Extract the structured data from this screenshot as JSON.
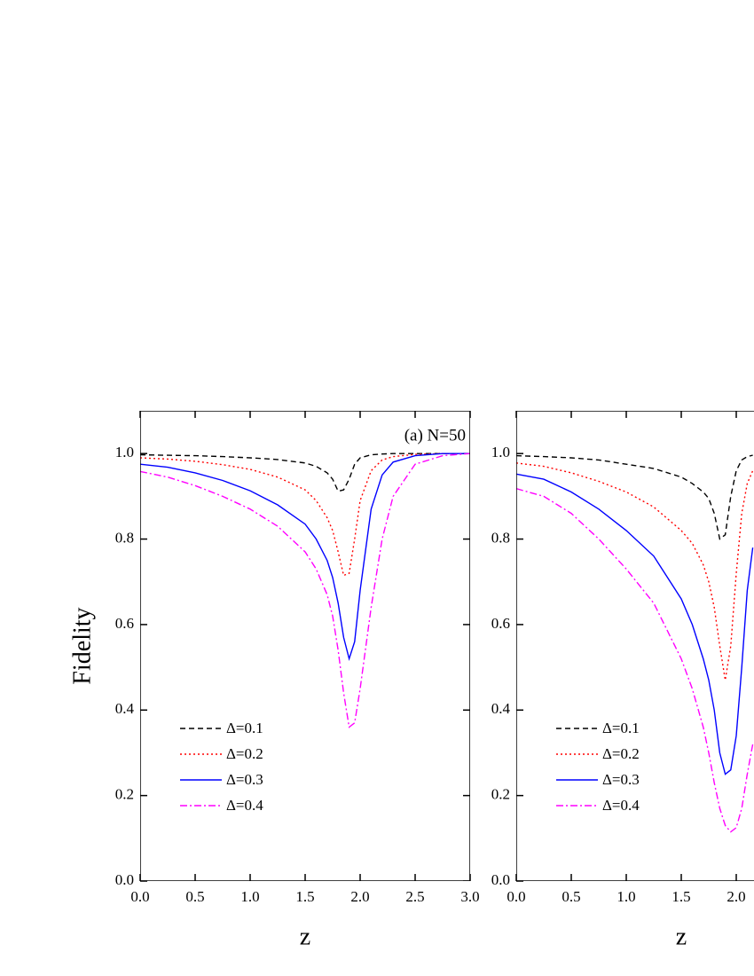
{
  "chart_data": [
    {
      "type": "line",
      "annotation": "(a) N=50",
      "ylabel": "Fidelity",
      "xlabel": "z",
      "xlim": [
        0,
        3
      ],
      "ylim": [
        0,
        1.1
      ],
      "xticks": [
        {
          "value": 0,
          "label": "0.0"
        },
        0.5,
        {
          "value": 1,
          "label": "1.0"
        },
        1.5,
        {
          "value": 2,
          "label": "2.0"
        },
        2.5,
        {
          "value": 3,
          "label": "3.0"
        }
      ],
      "yticks": [
        {
          "value": 0,
          "label": "0.0"
        },
        0.2,
        0.4,
        0.6,
        0.8,
        {
          "value": 1,
          "label": "1.0"
        }
      ],
      "x": [
        0,
        0.25,
        0.5,
        0.75,
        1.0,
        1.25,
        1.5,
        1.6,
        1.7,
        1.75,
        1.8,
        1.85,
        1.9,
        1.95,
        2.0,
        2.1,
        2.2,
        2.3,
        2.5,
        2.75,
        3.0
      ],
      "series": [
        {
          "name": "Δ=0.1",
          "color": "#000000",
          "dash": "dashed",
          "values": [
            0.997,
            0.996,
            0.995,
            0.993,
            0.99,
            0.986,
            0.978,
            0.97,
            0.955,
            0.94,
            0.912,
            0.915,
            0.94,
            0.975,
            0.99,
            0.997,
            0.999,
            1.0,
            1.0,
            1.0,
            1.0
          ]
        },
        {
          "name": "Δ=0.2",
          "color": "#ff0000",
          "dash": "dotted",
          "values": [
            0.99,
            0.987,
            0.982,
            0.974,
            0.963,
            0.945,
            0.915,
            0.89,
            0.85,
            0.82,
            0.77,
            0.715,
            0.72,
            0.8,
            0.89,
            0.96,
            0.985,
            0.993,
            0.998,
            1.0,
            1.0
          ]
        },
        {
          "name": "Δ=0.3",
          "color": "#0000ff",
          "dash": "solid",
          "values": [
            0.975,
            0.968,
            0.955,
            0.937,
            0.913,
            0.88,
            0.835,
            0.8,
            0.75,
            0.71,
            0.65,
            0.57,
            0.52,
            0.56,
            0.68,
            0.87,
            0.95,
            0.98,
            0.995,
            1.0,
            1.0
          ]
        },
        {
          "name": "Δ=0.4",
          "color": "#ff00ff",
          "dash": "dashdot",
          "values": [
            0.958,
            0.945,
            0.925,
            0.9,
            0.87,
            0.83,
            0.77,
            0.73,
            0.67,
            0.62,
            0.54,
            0.44,
            0.36,
            0.37,
            0.45,
            0.64,
            0.8,
            0.9,
            0.975,
            0.995,
            1.0
          ]
        }
      ]
    },
    {
      "type": "line",
      "xlabel": "z",
      "xlim": [
        0,
        3
      ],
      "ylim": [
        0,
        1.1
      ],
      "xticks": [
        {
          "value": 0,
          "label": "0.0"
        },
        0.5,
        {
          "value": 1,
          "label": "1.0"
        },
        1.5,
        {
          "value": 2,
          "label": "2.0"
        }
      ],
      "yticks": [
        {
          "value": 0,
          "label": "0.0"
        },
        0.2,
        0.4,
        0.6,
        0.8,
        {
          "value": 1,
          "label": "1.0"
        }
      ],
      "x": [
        0,
        0.25,
        0.5,
        0.75,
        1.0,
        1.25,
        1.5,
        1.6,
        1.7,
        1.75,
        1.8,
        1.85,
        1.9,
        1.95,
        2.0,
        2.05,
        2.1,
        2.15
      ],
      "series": [
        {
          "name": "Δ=0.1",
          "color": "#000000",
          "dash": "dashed",
          "values": [
            0.995,
            0.993,
            0.99,
            0.985,
            0.975,
            0.965,
            0.945,
            0.93,
            0.91,
            0.895,
            0.86,
            0.8,
            0.81,
            0.9,
            0.96,
            0.985,
            0.993,
            0.996
          ]
        },
        {
          "name": "Δ=0.2",
          "color": "#ff0000",
          "dash": "dotted",
          "values": [
            0.978,
            0.97,
            0.955,
            0.935,
            0.91,
            0.875,
            0.82,
            0.79,
            0.74,
            0.7,
            0.64,
            0.55,
            0.47,
            0.55,
            0.72,
            0.86,
            0.93,
            0.96
          ]
        },
        {
          "name": "Δ=0.3",
          "color": "#0000ff",
          "dash": "solid",
          "values": [
            0.952,
            0.94,
            0.91,
            0.87,
            0.82,
            0.76,
            0.66,
            0.6,
            0.52,
            0.47,
            0.4,
            0.3,
            0.25,
            0.26,
            0.34,
            0.5,
            0.68,
            0.78
          ]
        },
        {
          "name": "Δ=0.4",
          "color": "#ff00ff",
          "dash": "dashdot",
          "values": [
            0.918,
            0.9,
            0.86,
            0.8,
            0.73,
            0.65,
            0.52,
            0.45,
            0.36,
            0.3,
            0.23,
            0.17,
            0.13,
            0.115,
            0.125,
            0.17,
            0.25,
            0.32
          ]
        }
      ]
    }
  ]
}
